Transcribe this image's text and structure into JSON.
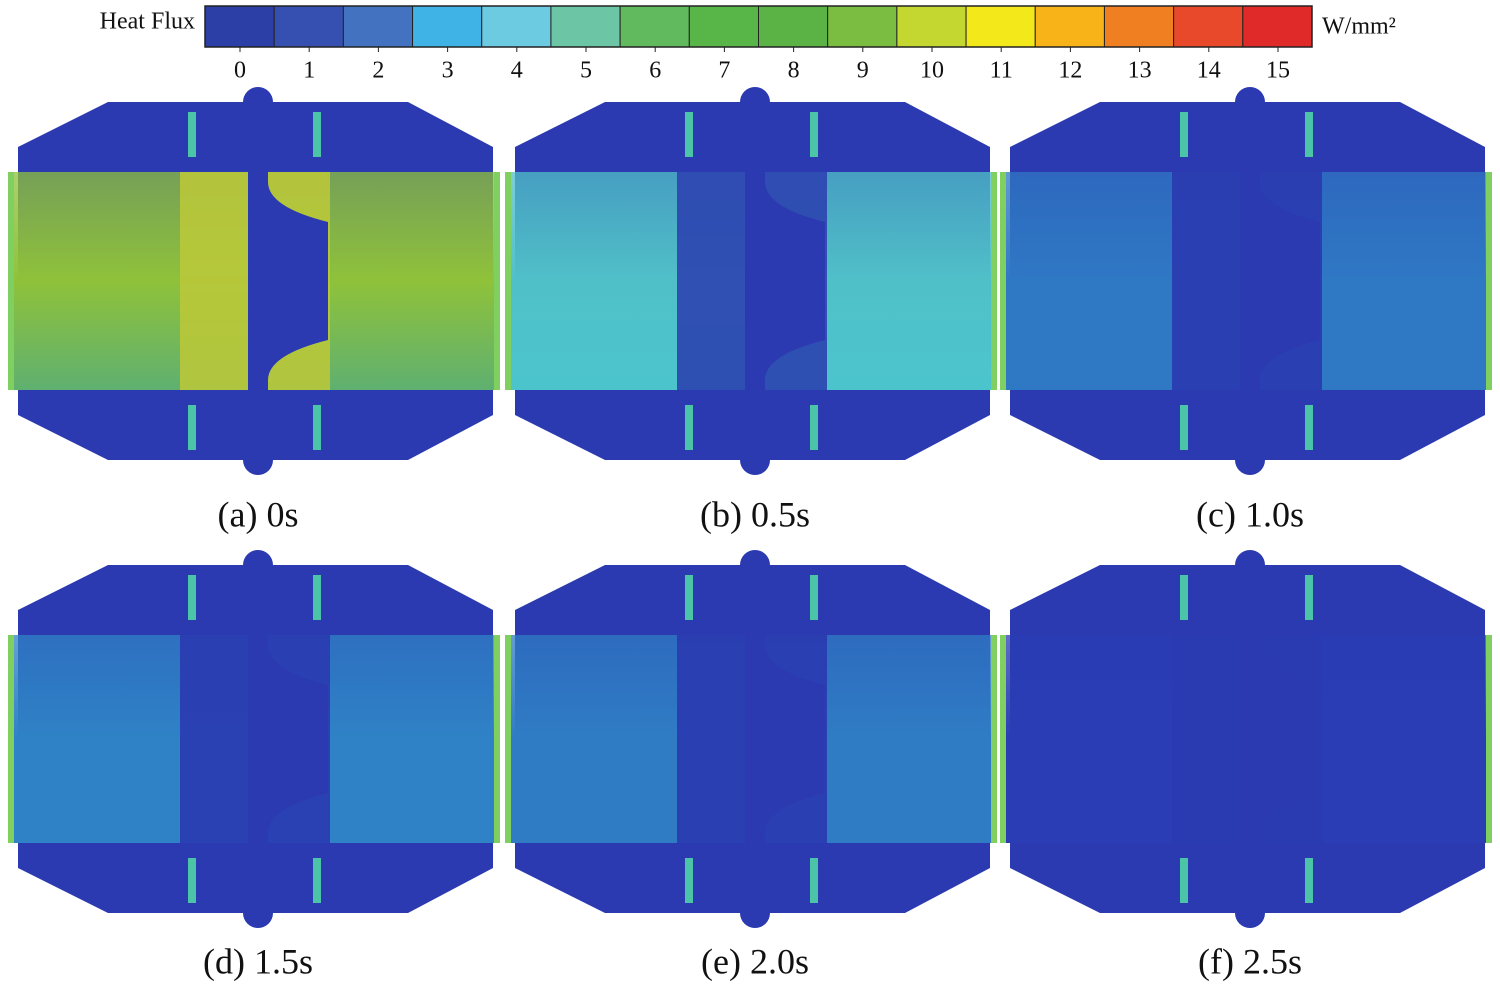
{
  "colorbar": {
    "title": "Heat Flux",
    "unit": "W/mm²",
    "range": [
      0,
      15
    ],
    "ticks": [
      0,
      1,
      2,
      3,
      4,
      5,
      6,
      7,
      8,
      9,
      10,
      11,
      12,
      13,
      14,
      15
    ],
    "colors": [
      "#2b3fa6",
      "#3550b0",
      "#4272c0",
      "#3fb2e6",
      "#6ccbe0",
      "#6cc6a6",
      "#62ba5e",
      "#58b648",
      "#5bb346",
      "#7bbd40",
      "#c4d630",
      "#f2e81a",
      "#f8b318",
      "#f07f22",
      "#e8492a",
      "#e02a2a"
    ]
  },
  "panels": [
    {
      "caption": "(a) 0s"
    },
    {
      "caption": "(b) 0.5s"
    },
    {
      "caption": "(c) 1.0s"
    },
    {
      "caption": "(d) 1.5s"
    },
    {
      "caption": "(e) 2.0s"
    },
    {
      "caption": "(f) 2.5s"
    }
  ]
}
